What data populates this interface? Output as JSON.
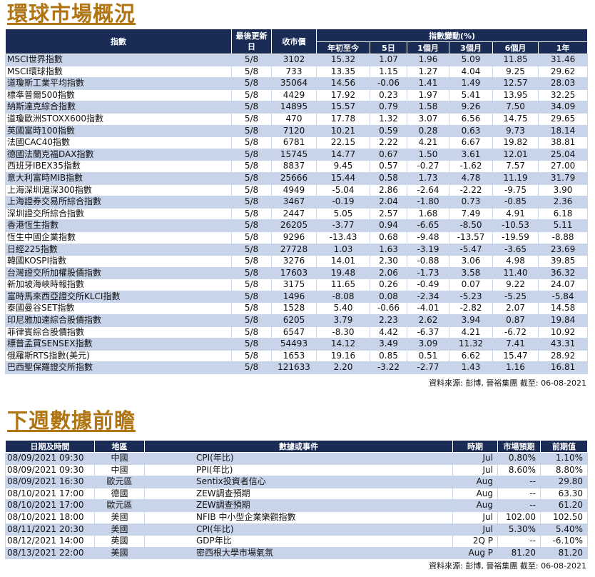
{
  "markets": {
    "title": "環球市場概況",
    "headers": {
      "index": "指數",
      "last_update": "最後更新日",
      "close": "收市價",
      "change_group": "指數變動(%)",
      "ytd": "年初至今",
      "d5": "5日",
      "m1": "1個月",
      "m3": "3個月",
      "m6": "6個月",
      "y1": "1年"
    },
    "rows": [
      [
        "MSCI世界指數",
        "5/8",
        "3102",
        "15.32",
        "1.07",
        "1.96",
        "5.09",
        "11.85",
        "31.46"
      ],
      [
        "MSCI環球指數",
        "5/8",
        "733",
        "13.35",
        "1.15",
        "1.27",
        "4.04",
        "9.25",
        "29.62"
      ],
      [
        "道瓊斯工業平均指數",
        "5/8",
        "35064",
        "14.56",
        "-0.06",
        "1.41",
        "1.49",
        "12.57",
        "28.03"
      ],
      [
        "標準普爾500指數",
        "5/8",
        "4429",
        "17.92",
        "0.23",
        "1.97",
        "5.41",
        "13.95",
        "32.25"
      ],
      [
        "納斯達克綜合指數",
        "5/8",
        "14895",
        "15.57",
        "0.79",
        "1.58",
        "9.26",
        "7.50",
        "34.09"
      ],
      [
        "道瓊歐洲STOXX600指數",
        "5/8",
        "470",
        "17.78",
        "1.32",
        "3.07",
        "6.56",
        "14.75",
        "29.65"
      ],
      [
        "英國富時100指數",
        "5/8",
        "7120",
        "10.21",
        "0.59",
        "0.28",
        "0.63",
        "9.73",
        "18.14"
      ],
      [
        "法國CAC40指數",
        "5/8",
        "6781",
        "22.15",
        "2.22",
        "4.21",
        "6.67",
        "19.82",
        "38.81"
      ],
      [
        "德國法蘭克福DAX指數",
        "5/8",
        "15745",
        "14.77",
        "0.67",
        "1.50",
        "3.61",
        "12.01",
        "25.04"
      ],
      [
        "西班牙IBEX35指數",
        "5/8",
        "8837",
        "9.45",
        "0.57",
        "-0.27",
        "-1.62",
        "7.57",
        "27.00"
      ],
      [
        "意大利富時MIB指數",
        "5/8",
        "25666",
        "15.44",
        "0.58",
        "1.73",
        "4.78",
        "11.19",
        "31.79"
      ],
      [
        "上海深圳滬深300指數",
        "5/8",
        "4949",
        "-5.04",
        "2.86",
        "-2.64",
        "-2.22",
        "-9.75",
        "3.90"
      ],
      [
        "上海證券交易所綜合指數",
        "5/8",
        "3467",
        "-0.19",
        "2.04",
        "-1.80",
        "0.73",
        "-0.85",
        "2.36"
      ],
      [
        "深圳證交所綜合指數",
        "5/8",
        "2447",
        "5.05",
        "2.57",
        "1.68",
        "7.49",
        "4.91",
        "6.18"
      ],
      [
        "香港恆生指數",
        "5/8",
        "26205",
        "-3.77",
        "0.94",
        "-6.65",
        "-8.50",
        "-10.53",
        "5.11"
      ],
      [
        "恆生中國企業指數",
        "5/8",
        "9296",
        "-13.43",
        "0.68",
        "-9.48",
        "-13.57",
        "-19.59",
        "-8.88"
      ],
      [
        "日經225指數",
        "5/8",
        "27728",
        "1.03",
        "1.63",
        "-3.19",
        "-5.47",
        "-3.65",
        "23.69"
      ],
      [
        "韓國KOSPI指數",
        "5/8",
        "3276",
        "14.01",
        "2.30",
        "-0.88",
        "3.06",
        "4.98",
        "39.85"
      ],
      [
        "台灣證交所加權股價指數",
        "5/8",
        "17603",
        "19.48",
        "2.06",
        "-1.73",
        "3.58",
        "11.40",
        "36.32"
      ],
      [
        "新加坡海峽時報指數",
        "5/8",
        "3175",
        "11.65",
        "0.26",
        "-0.49",
        "0.07",
        "9.22",
        "24.07"
      ],
      [
        "富時馬來西亞證交所KLCI指數",
        "5/8",
        "1496",
        "-8.08",
        "0.08",
        "-2.34",
        "-5.23",
        "-5.25",
        "-5.84"
      ],
      [
        "泰國曼谷SET指數",
        "5/8",
        "1528",
        "5.40",
        "-0.66",
        "-4.01",
        "-2.82",
        "2.07",
        "14.58"
      ],
      [
        "印尼雅加達綜合股價指數",
        "5/8",
        "6205",
        "3.79",
        "2.23",
        "2.62",
        "3.94",
        "0.87",
        "19.84"
      ],
      [
        "菲律賓綜合股價指數",
        "5/8",
        "6547",
        "-8.30",
        "4.42",
        "-6.37",
        "4.21",
        "-6.72",
        "10.92"
      ],
      [
        "標普孟買SENSEX指數",
        "5/8",
        "54493",
        "14.12",
        "3.49",
        "3.09",
        "11.32",
        "7.41",
        "43.31"
      ],
      [
        "俄羅斯RTS指數(美元)",
        "5/8",
        "1653",
        "19.16",
        "0.85",
        "0.51",
        "6.62",
        "15.47",
        "28.92"
      ],
      [
        "巴西聖保羅證交所指數",
        "5/8",
        "121633",
        "2.20",
        "-3.22",
        "-2.77",
        "1.43",
        "1.16",
        "16.81"
      ]
    ],
    "source": "資料來源: 彭博, 晉裕集團 截至: 06-08-2021"
  },
  "events": {
    "title": "下週數據前瞻",
    "headers": {
      "datetime": "日期及時間",
      "region": "地區",
      "event": "數據或事件",
      "period": "時期",
      "forecast": "市場預期",
      "previous": "前期值"
    },
    "rows": [
      [
        "08/09/2021 09:30",
        "中國",
        "CPI(年比)",
        "Jul",
        "0.80%",
        "1.10%"
      ],
      [
        "08/09/2021 09:30",
        "中國",
        "PPI(年比)",
        "Jul",
        "8.60%",
        "8.80%"
      ],
      [
        "08/09/2021 16:30",
        "歐元區",
        "Sentix投資者信心",
        "Aug",
        "--",
        "29.80"
      ],
      [
        "08/10/2021 17:00",
        "德國",
        "ZEW調查預期",
        "Aug",
        "--",
        "63.30"
      ],
      [
        "08/10/2021 17:00",
        "歐元區",
        "ZEW調查預期",
        "Aug",
        "--",
        "61.20"
      ],
      [
        "08/10/2021 18:00",
        "美國",
        "NFIB 中小型企業樂觀指數",
        "Jul",
        "102.00",
        "102.50"
      ],
      [
        "08/11/2021 20:30",
        "美國",
        "CPI(年比)",
        "Jul",
        "5.30%",
        "5.40%"
      ],
      [
        "08/12/2021 14:00",
        "英國",
        "GDP年比",
        "2Q P",
        "--",
        "-6.10%"
      ],
      [
        "08/13/2021 22:00",
        "美國",
        "密西根大學市場氣氛",
        "Aug P",
        "81.20",
        "81.20"
      ]
    ],
    "source": "資料來源: 彭博, 晉裕集團 截至: 06-08-2021"
  }
}
